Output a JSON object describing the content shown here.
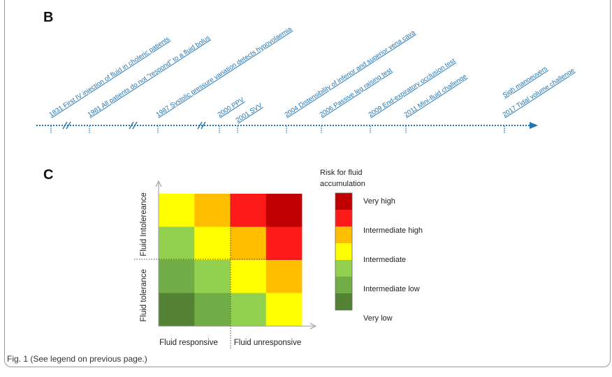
{
  "panels": {
    "b_letter": "B",
    "c_letter": "C"
  },
  "timeline": {
    "color": "#1f75b5",
    "events": [
      {
        "label": "1831  First IV injection of fluid in choleric patients"
      },
      {
        "label": "1981  All patients do not \"respond\" to a fluid bolus"
      },
      {
        "label": "1987  Systolic pressure variation detects hypovolaemia"
      },
      {
        "label": "2000  PPV"
      },
      {
        "label": "2001  SVV"
      },
      {
        "label": "2004  Distensibility of inferior and superior vena cava"
      },
      {
        "label": "2006  Passive leg raising  test"
      },
      {
        "label": "2009  End-expiratory occlusion test"
      },
      {
        "label": "2011  Mini-fluid challenge"
      },
      {
        "label": "Sigh manoeuvers"
      },
      {
        "label": "2017  Tidal volume challenge"
      }
    ]
  },
  "matrix": {
    "y_upper_label": "Fluid Intolereance",
    "y_lower_label": "Fluid tolerance",
    "x_left_label": "Fluid responsive",
    "x_right_label": "Fluid unresponsive",
    "rows": [
      [
        "#ffff00",
        "#ffbf00",
        "#ff1a1a",
        "#c00000"
      ],
      [
        "#92d050",
        "#ffff00",
        "#ffbf00",
        "#ff1a1a"
      ],
      [
        "#70ad47",
        "#92d050",
        "#ffff00",
        "#ffbf00"
      ],
      [
        "#548235",
        "#70ad47",
        "#92d050",
        "#ffff00"
      ]
    ]
  },
  "legend": {
    "title_line1": "Risk for fluid",
    "title_line2": "accumulation",
    "levels": [
      {
        "label": "Very high",
        "color": "#c00000"
      },
      {
        "label": "Intermediate high",
        "color": "#ff1a1a"
      },
      {
        "label": "",
        "color": "#ffbf00"
      },
      {
        "label": "Intermediate",
        "color": "#ffff00"
      },
      {
        "label": "Intermediate low",
        "color": "#92d050"
      },
      {
        "label": "",
        "color": "#70ad47"
      },
      {
        "label": "Very low",
        "color": "#548235"
      }
    ]
  },
  "caption": "Fig. 1  (See legend on previous page.)"
}
